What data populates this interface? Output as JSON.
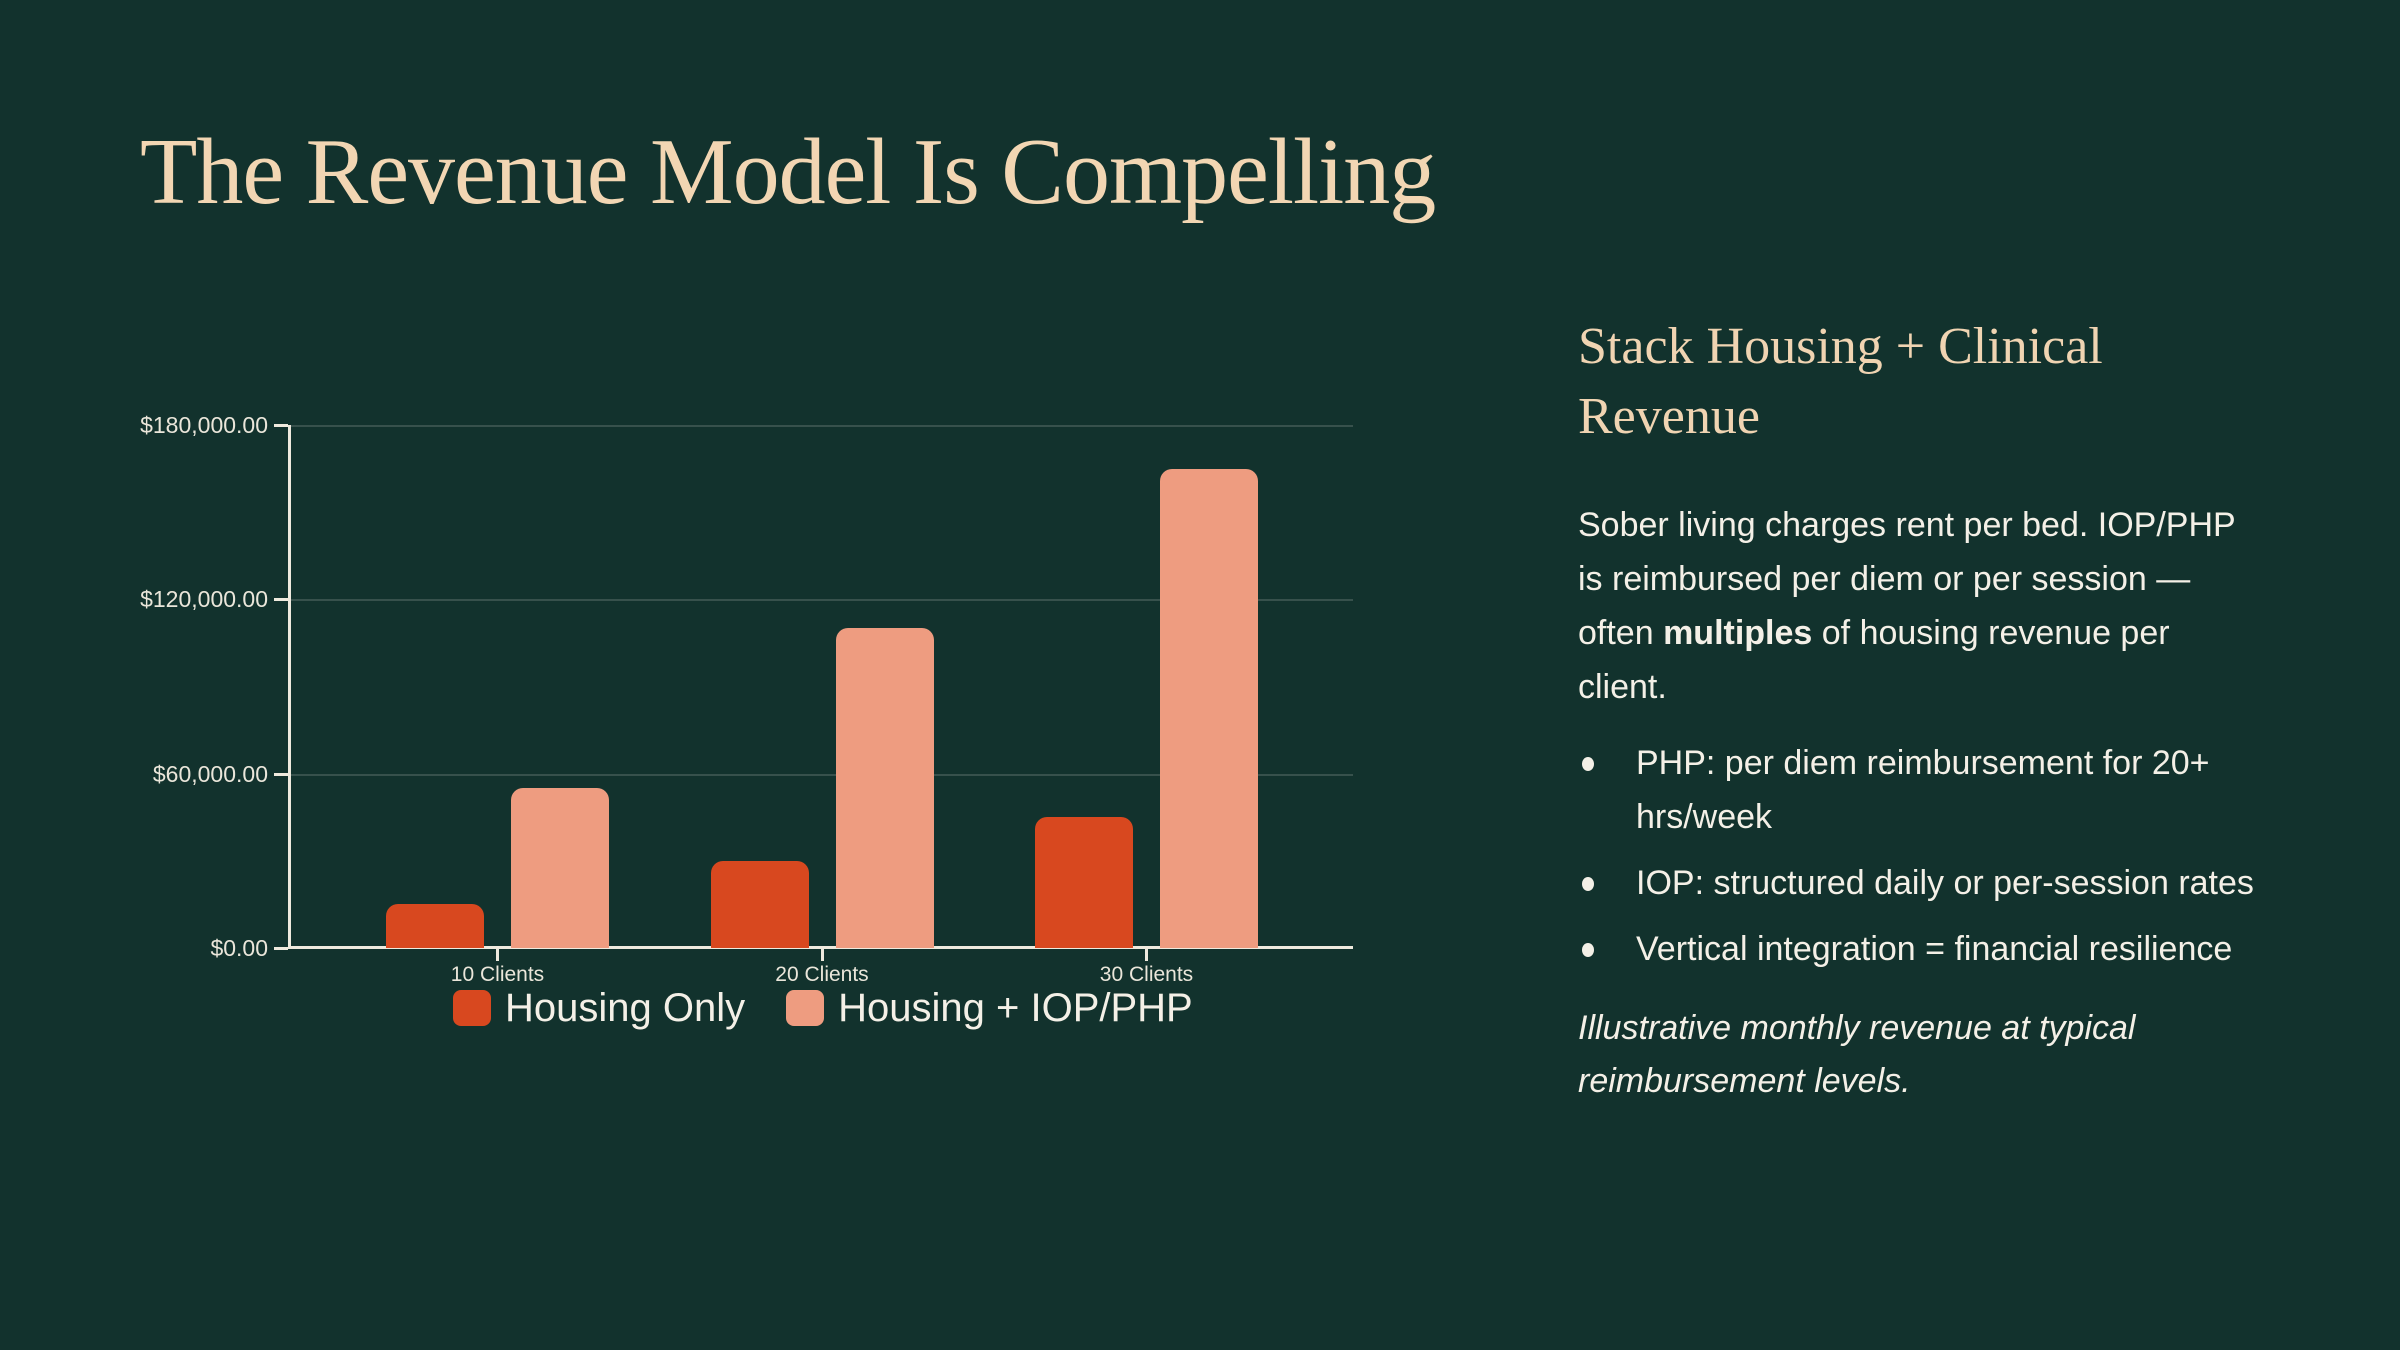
{
  "slide": {
    "title": "The Revenue Model Is Compelling"
  },
  "chart_data": {
    "type": "bar",
    "title": "",
    "categories": [
      "10 Clients",
      "20 Clients",
      "30 Clients"
    ],
    "series": [
      {
        "name": "Housing Only",
        "color": "#d8481f",
        "values": [
          15000,
          30000,
          45000
        ]
      },
      {
        "name": "Housing + IOP/PHP",
        "color": "#ee9c80",
        "values": [
          55000,
          110000,
          165000
        ]
      }
    ],
    "ylim": [
      0,
      180000
    ],
    "ytick_values": [
      0,
      60000,
      120000,
      180000
    ],
    "ytick_labels": [
      "$0.00",
      "$60,000.00",
      "$120,000.00",
      "$180,000.00"
    ],
    "xlabel": "",
    "ylabel": "",
    "grid": true,
    "legend_position": "bottom-left",
    "note": "Illustrative monthly revenue at typical reimbursement levels."
  },
  "panel": {
    "heading": "Stack Housing + Clinical Revenue",
    "paragraph": {
      "pre": "Sober living charges rent per bed. IOP/PHP is reimbursed per diem or per session — often ",
      "bold": "multiples",
      "post": " of housing revenue per client."
    },
    "bullets": [
      "PHP: per diem reimbursement for 20+ hrs/week",
      "IOP: structured daily or per-session rates",
      "Vertical integration = financial resilience"
    ],
    "footnote": "Illustrative monthly revenue at typical reimbursement levels."
  },
  "colors": {
    "background": "#12322d",
    "title_cream": "#f2d6b3",
    "body_text": "#f4f0e7",
    "housing_only": "#d8481f",
    "housing_iop_php": "#ee9c80",
    "axis": "#efeade",
    "gridline": "rgba(244,240,231,0.17)"
  }
}
